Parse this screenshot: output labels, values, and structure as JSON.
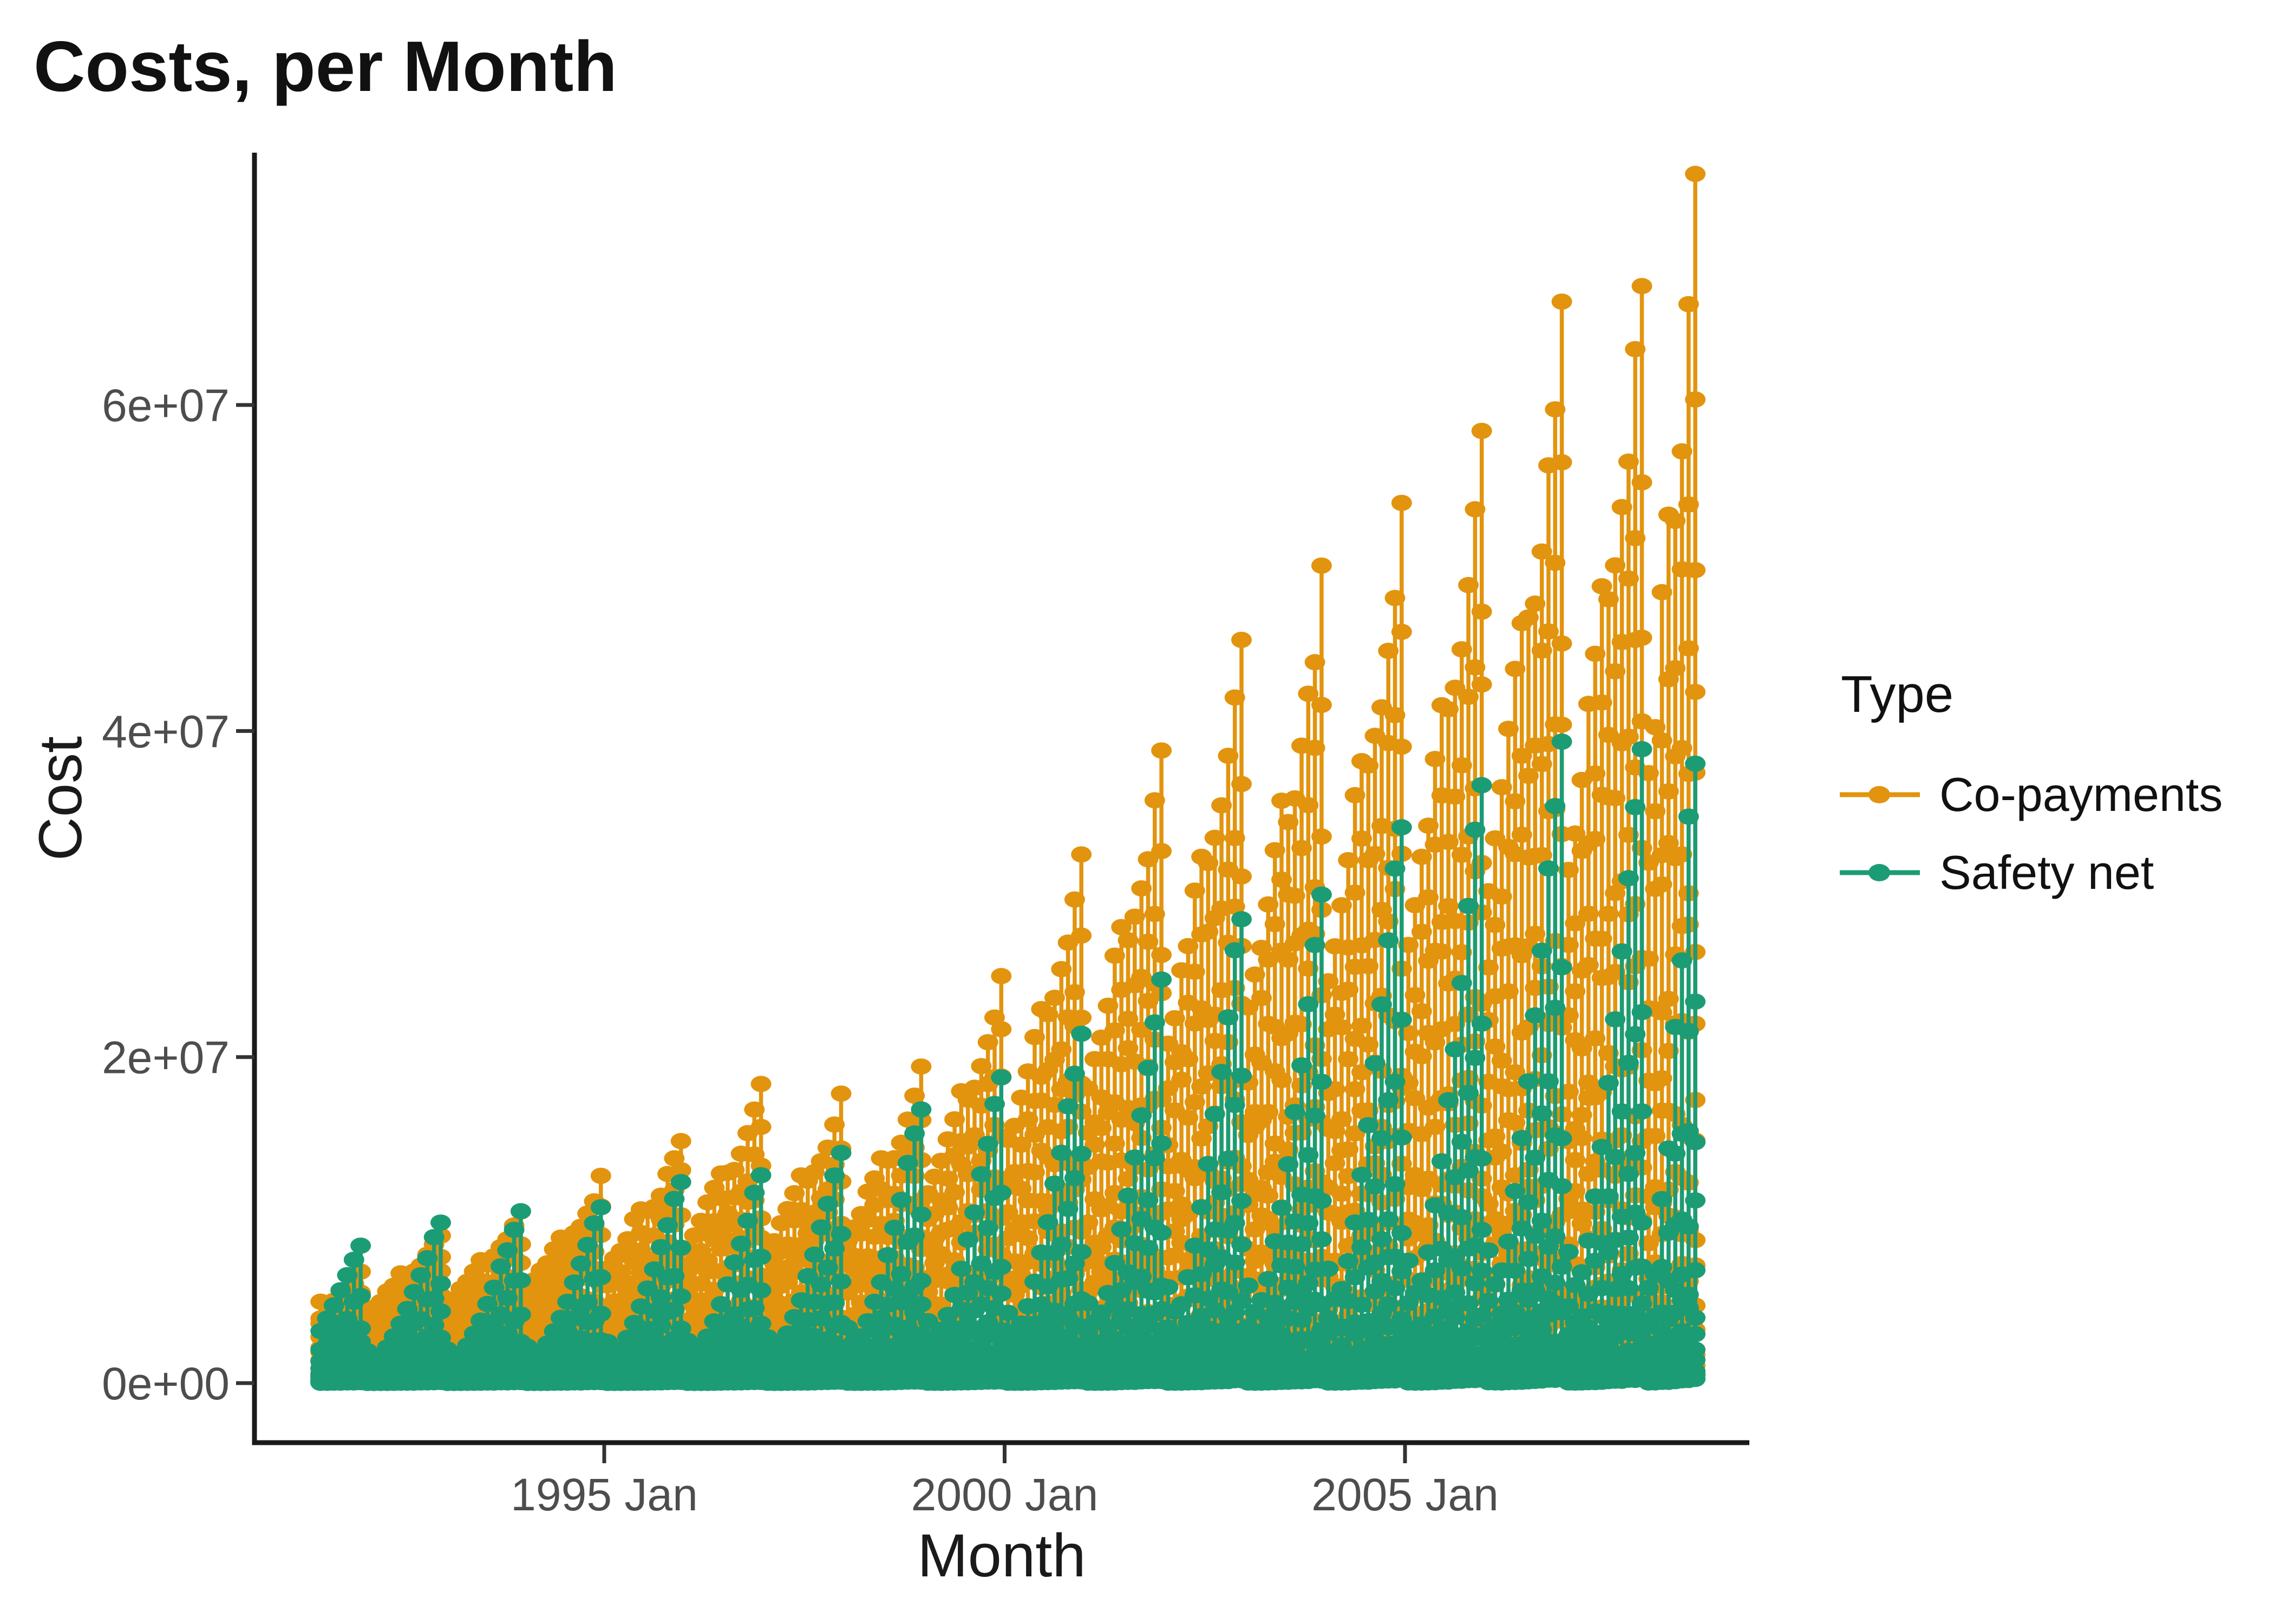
{
  "chart_data": {
    "type": "scatter",
    "subtype": "stem-lollipop",
    "title": "Costs, per Month",
    "xlabel": "Month",
    "ylabel": "Cost",
    "background_color": "#ffffff",
    "axis_line_color": "#1a1a1a",
    "tick_mark_color": "#333333",
    "tick_label_color": "#4d4d4d",
    "x_axis": {
      "ticks": [
        {
          "label": "1995 Jan",
          "year": 1995
        },
        {
          "label": "2000 Jan",
          "year": 2000
        },
        {
          "label": "2005 Jan",
          "year": 2005
        }
      ],
      "data_start": "1991 Jun",
      "data_end": "2008 Aug"
    },
    "y_axis": {
      "ticks": [
        {
          "label": "0e+00",
          "value": 0
        },
        {
          "label": "2e+07",
          "value": 20000000
        },
        {
          "label": "4e+07",
          "value": 40000000
        },
        {
          "label": "6e+07",
          "value": 60000000
        }
      ],
      "max_plotted_value": 73500000
    },
    "legend": {
      "title": "Type",
      "position": "right",
      "entries": [
        {
          "label": "Co-payments",
          "color": "#E2940E"
        },
        {
          "label": "Safety net",
          "color": "#1C9C74"
        }
      ]
    },
    "data_range": {
      "start_year": 1991,
      "start_month": 6,
      "end_year": 2008,
      "end_month": 8,
      "final_year_months": 8
    },
    "series": [
      {
        "name": "Co-payments",
        "color": "#E2940E",
        "annual_peak_by_year": {
          "years": [
            1991,
            1992,
            1993,
            1994,
            1995,
            1996,
            1997,
            1998,
            1999,
            2000,
            2001,
            2002,
            2003,
            2004,
            2005,
            2006,
            2007,
            2008
          ],
          "values": [
            6800000,
            9200000,
            10500000,
            12500000,
            15000000,
            18200000,
            17500000,
            19200000,
            25000000,
            32000000,
            39000000,
            45500000,
            49500000,
            54000000,
            58000000,
            66000000,
            68500000,
            73500000
          ]
        },
        "monthly_profile": [
          0.46,
          0.5,
          0.55,
          0.6,
          0.66,
          0.72,
          0.7,
          0.73,
          0.78,
          0.84,
          0.91,
          1.0
        ],
        "points_per_month_fractions": [
          1,
          0.84,
          0.71,
          0.59,
          0.48,
          0.39,
          0.31,
          0.24,
          0.18,
          0.13,
          0.09,
          0.06,
          0.04,
          0.026,
          0.016,
          0.009
        ]
      },
      {
        "name": "Safety net",
        "color": "#1C9C74",
        "annual_peak_by_year": {
          "years": [
            1991,
            1992,
            1993,
            1994,
            1995,
            1996,
            1997,
            1998,
            1999,
            2000,
            2001,
            2002,
            2003,
            2004,
            2005,
            2006,
            2007,
            2008
          ],
          "values": [
            8500000,
            10000000,
            10500000,
            11000000,
            12500000,
            13000000,
            14000000,
            17000000,
            19000000,
            21500000,
            25000000,
            29000000,
            29500000,
            34500000,
            37000000,
            40000000,
            39500000,
            38500000
          ]
        },
        "monthly_profile": [
          0.2,
          0.15,
          0.17,
          0.22,
          0.29,
          0.37,
          0.46,
          0.56,
          0.67,
          0.78,
          0.9,
          1.0
        ],
        "points_per_month_fractions": [
          1,
          0.62,
          0.41,
          0.27,
          0.18,
          0.12,
          0.075,
          0.05,
          0.032,
          0.02,
          0.012,
          0.006
        ]
      }
    ]
  }
}
